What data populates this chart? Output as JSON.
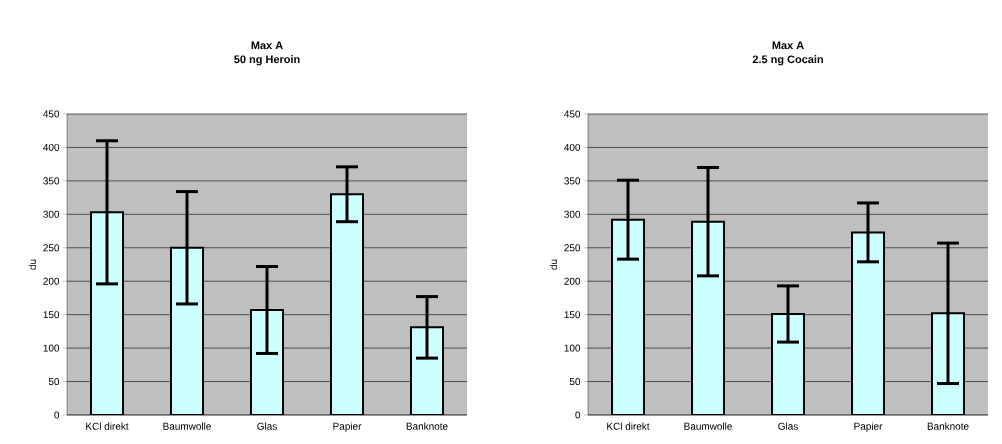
{
  "chart_data": [
    {
      "type": "bar",
      "title": "Max A",
      "subtitle": "50 ng Heroin",
      "ylabel": "du",
      "categories": [
        "KCl direkt",
        "Baumwolle",
        "Glas",
        "Papier",
        "Banknote"
      ],
      "values": [
        303,
        250,
        157,
        330,
        131
      ],
      "errors": [
        107,
        84,
        65,
        41,
        46
      ],
      "color": "#ccffff",
      "ylim": [
        0,
        450
      ],
      "yticks": [
        0,
        50,
        100,
        150,
        200,
        250,
        300,
        350,
        400,
        450
      ],
      "grid": "y"
    },
    {
      "type": "bar",
      "title": "Max A",
      "subtitle": "2.5 ng Cocain",
      "ylabel": "du",
      "categories": [
        "KCl direkt",
        "Baumwolle",
        "Glas",
        "Papier",
        "Banknote"
      ],
      "values": [
        292,
        289,
        151,
        273,
        152
      ],
      "errors": [
        59,
        81,
        42,
        44,
        105
      ],
      "color": "#ccffff",
      "ylim": [
        0,
        450
      ],
      "yticks": [
        0,
        50,
        100,
        150,
        200,
        250,
        300,
        350,
        400,
        450
      ],
      "grid": "y"
    }
  ]
}
